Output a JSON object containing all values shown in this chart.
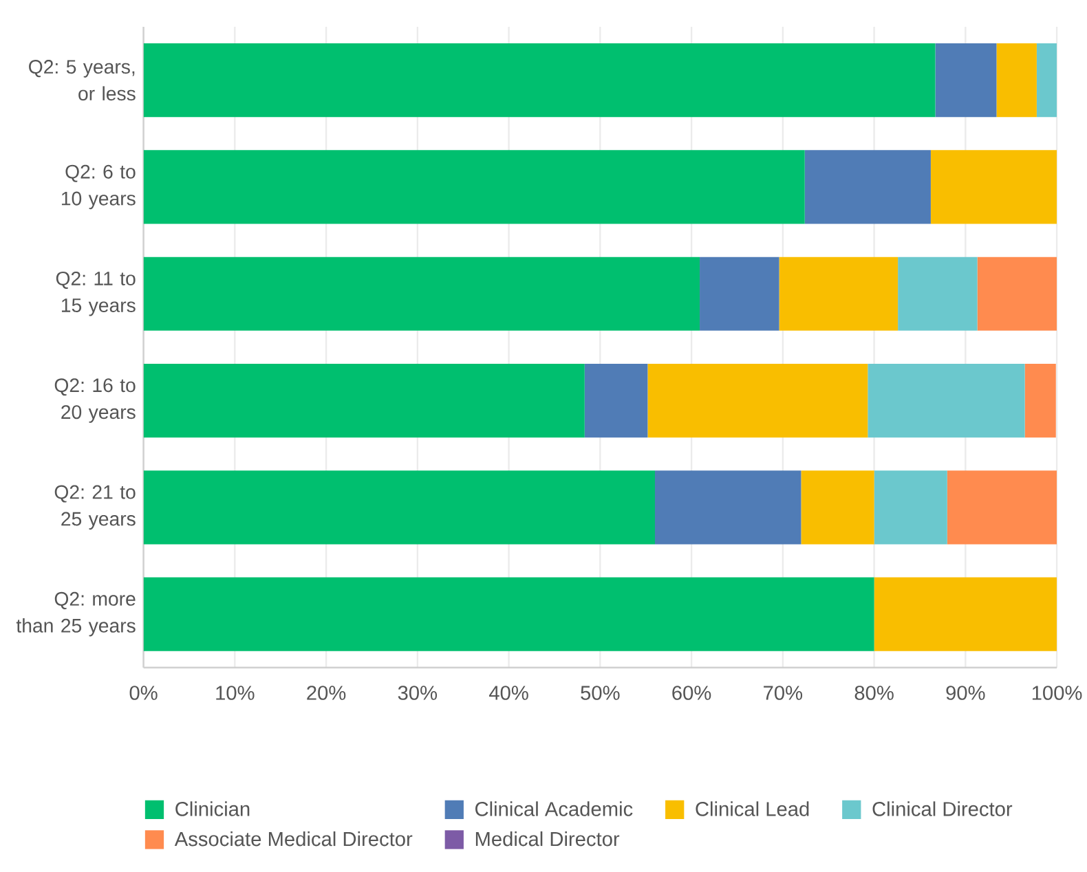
{
  "chart_data": {
    "type": "bar",
    "orientation": "horizontal",
    "stacked": true,
    "categories": [
      "Q2: 5 years, or less",
      "Q2: 6 to 10 years",
      "Q2: 11 to 15 years",
      "Q2: 16 to 20 years",
      "Q2: 21 to 25 years",
      "Q2: more than 25 years"
    ],
    "series": [
      {
        "name": "Clinician",
        "color": "#00bf6f",
        "values": [
          86.7,
          72.4,
          60.9,
          48.3,
          56.0,
          80.0
        ]
      },
      {
        "name": "Clinical Academic",
        "color": "#507cb6",
        "values": [
          6.7,
          13.8,
          8.7,
          6.9,
          16.0,
          0
        ]
      },
      {
        "name": "Clinical Lead",
        "color": "#f9be00",
        "values": [
          4.4,
          13.8,
          13.0,
          24.1,
          8.0,
          20.0
        ]
      },
      {
        "name": "Clinical Director",
        "color": "#6bc8cd",
        "values": [
          2.2,
          0,
          8.7,
          17.2,
          8.0,
          0
        ]
      },
      {
        "name": "Associate Medical Director",
        "color": "#ff8b4f",
        "values": [
          0,
          0,
          8.7,
          3.4,
          12.0,
          0
        ]
      },
      {
        "name": "Medical Director",
        "color": "#7d5ba6",
        "values": [
          0,
          0,
          0,
          0,
          0,
          0
        ]
      }
    ],
    "xlim": [
      0,
      100
    ],
    "xticks": [
      {
        "value": 0,
        "label": "0%"
      },
      {
        "value": 10,
        "label": "10%"
      },
      {
        "value": 20,
        "label": "20%"
      },
      {
        "value": 30,
        "label": "30%"
      },
      {
        "value": 40,
        "label": "40%"
      },
      {
        "value": 50,
        "label": "50%"
      },
      {
        "value": 60,
        "label": "60%"
      },
      {
        "value": 70,
        "label": "70%"
      },
      {
        "value": 80,
        "label": "80%"
      },
      {
        "value": 90,
        "label": "90%"
      },
      {
        "value": 100,
        "label": "100%"
      }
    ],
    "grid": "x",
    "legend": "bottom"
  }
}
